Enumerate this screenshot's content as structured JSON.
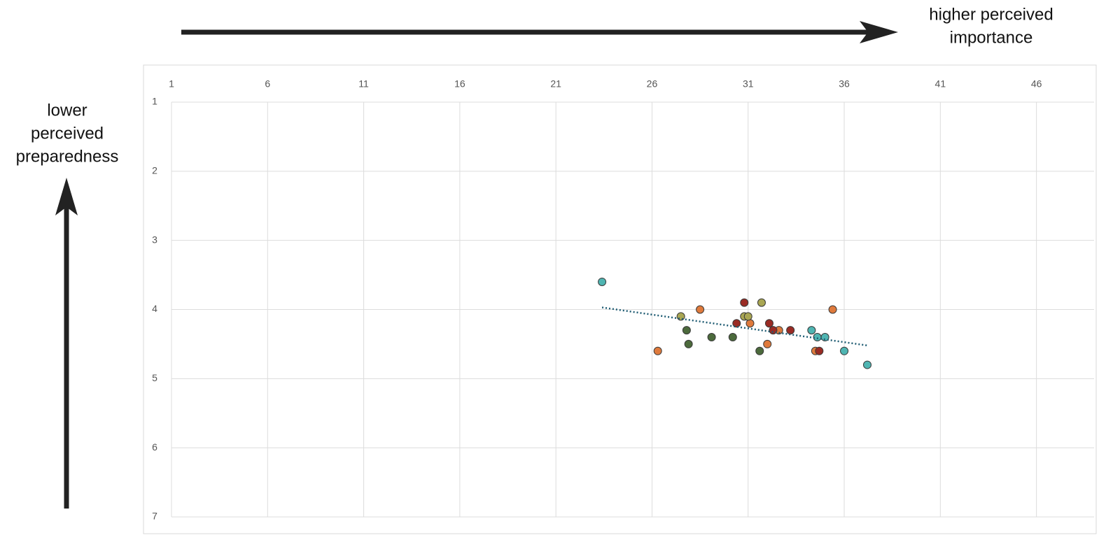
{
  "chart_data": {
    "type": "scatter",
    "x_annotation": [
      "higher perceived",
      "importance"
    ],
    "y_annotation": [
      "lower",
      "perceived",
      "preparedness"
    ],
    "xlim": [
      1,
      49
    ],
    "xticks": [
      1,
      6,
      11,
      16,
      21,
      26,
      31,
      36,
      41,
      46
    ],
    "ylim": [
      1,
      7
    ],
    "yticks": [
      1,
      2,
      3,
      4,
      5,
      6,
      7
    ],
    "y_inverted": true,
    "x_axis_position": "top",
    "grid": true,
    "series": [
      {
        "color": "#4fb5b2",
        "x": [
          23.4,
          34.3,
          34.6,
          35.0,
          36.0,
          37.2
        ],
        "y": [
          3.6,
          4.3,
          4.4,
          4.4,
          4.6,
          4.8
        ]
      },
      {
        "color": "#df7a3c",
        "x": [
          28.5,
          26.3,
          31.1,
          32.0,
          32.6,
          34.5,
          35.4
        ],
        "y": [
          4.0,
          4.6,
          4.2,
          4.5,
          4.3,
          4.6,
          4.0
        ]
      },
      {
        "color": "#4c6a3c",
        "x": [
          27.8,
          27.9,
          29.1,
          30.2,
          31.6
        ],
        "y": [
          4.3,
          4.5,
          4.4,
          4.4,
          4.6
        ]
      },
      {
        "color": "#a9a653",
        "x": [
          27.5,
          30.8,
          31.0,
          31.7
        ],
        "y": [
          4.1,
          4.1,
          4.1,
          3.9
        ]
      },
      {
        "color": "#9a2b24",
        "x": [
          30.4,
          30.8,
          32.1,
          32.3,
          33.2,
          34.7
        ],
        "y": [
          4.2,
          3.9,
          4.2,
          4.3,
          4.3,
          4.6
        ]
      }
    ],
    "trendline": {
      "color": "#1f5c73",
      "x": [
        23.4,
        37.2
      ],
      "y": [
        3.97,
        4.52
      ]
    }
  }
}
